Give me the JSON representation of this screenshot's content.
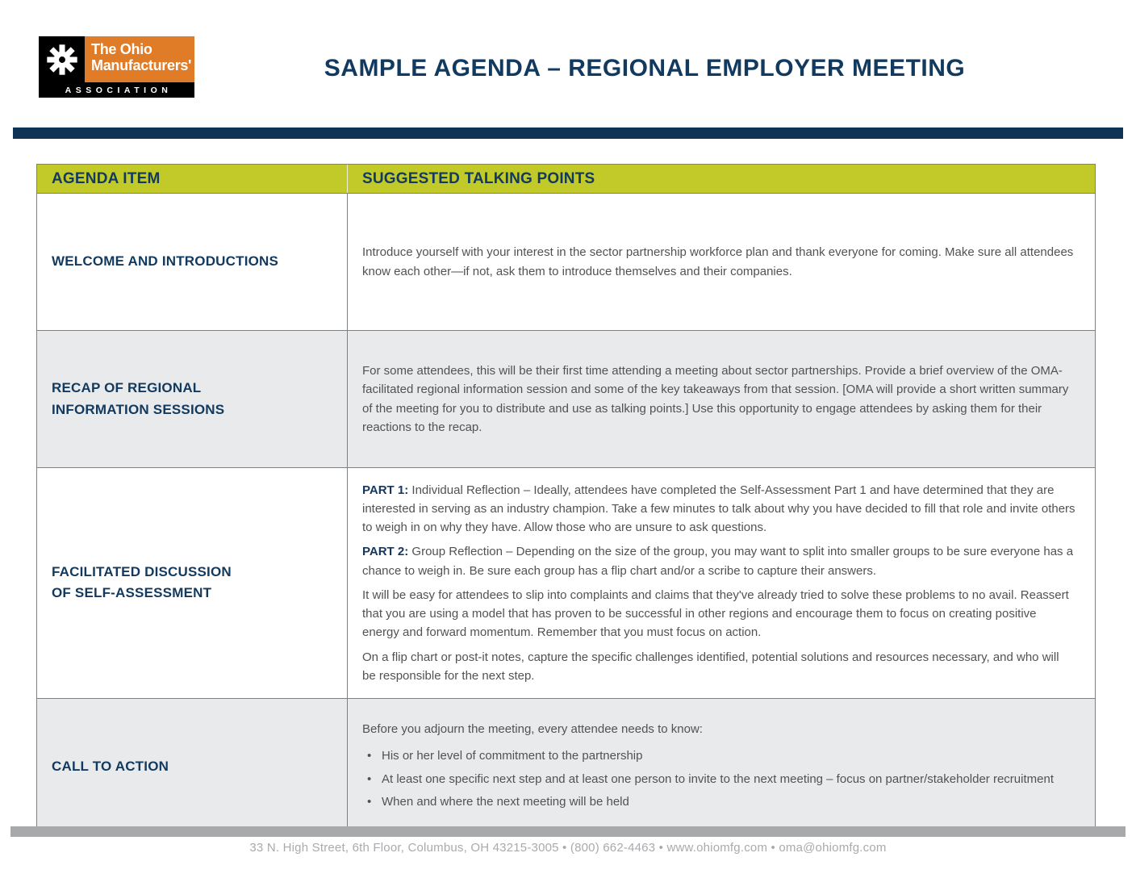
{
  "logo": {
    "line1": "The Ohio",
    "line2": "Manufacturers'",
    "line3": "ASSOCIATION"
  },
  "header": {
    "title": "SAMPLE AGENDA – REGIONAL EMPLOYER MEETING"
  },
  "table": {
    "headers": [
      "AGENDA ITEM",
      "SUGGESTED TALKING POINTS"
    ],
    "rows": [
      {
        "item": "WELCOME AND INTRODUCTIONS",
        "paragraphs": [
          {
            "text": "Introduce yourself with your interest in the sector partnership workforce plan and thank everyone for coming. Make sure all attendees know each other—if not, ask them to introduce themselves and their companies."
          }
        ]
      },
      {
        "item": "RECAP OF REGIONAL\nINFORMATION SESSIONS",
        "paragraphs": [
          {
            "text": "For some attendees, this will be their first time attending a meeting about sector partnerships. Provide a brief overview of the OMA-facilitated regional information session and some of the key takeaways from that session. [OMA will provide a short written summary of the meeting for you to distribute and use as talking points.] Use this opportunity to engage attendees by asking them for their reactions to the recap."
          }
        ]
      },
      {
        "item": "FACILITATED DISCUSSION\nOF SELF-ASSESSMENT",
        "paragraphs": [
          {
            "prefix": "PART 1:",
            "text": "Individual Reflection – Ideally, attendees have completed the Self-Assessment Part 1 and have determined that they are interested in serving as an industry champion. Take a few minutes to talk about why you have decided to fill that role and invite others to weigh in on why they have. Allow those who are unsure to ask questions."
          },
          {
            "prefix": "PART 2:",
            "text": "Group Reflection – Depending on the size of the group, you may want to split into smaller groups to be sure everyone has a chance to weigh in. Be sure each group has a flip chart and/or a scribe to capture their answers."
          },
          {
            "text": "It will be easy for attendees to slip into complaints and claims that they've already tried to solve these problems to no avail. Reassert that you are using a model that has proven to be successful in other regions and encourage them to focus on creating positive energy and forward momentum. Remember that you must focus on action."
          },
          {
            "text": "On a flip chart or post-it notes, capture the specific challenges identified, potential solutions and resources necessary, and who will be responsible for the next step."
          }
        ]
      },
      {
        "item": "CALL TO ACTION",
        "paragraphs": [
          {
            "text": "Before you adjourn the meeting, every attendee needs to know:"
          }
        ],
        "bullets": [
          "His or her level of commitment to the partnership",
          "At least one specific next step and at least one person to invite to the next meeting – focus on partner/stakeholder recruitment",
          "When and where the next meeting will be held"
        ]
      }
    ]
  },
  "footer": {
    "text": "33 N. High Street, 6th Floor, Columbus, OH 43215-3005 • (800) 662-4463 • www.ohiomfg.com • oma@ohiomfg.com"
  },
  "colors": {
    "navy": "#12395e",
    "header_green": "#c2ca2a",
    "logo_orange": "#e07c27",
    "alt_row_gray": "#e8eaec",
    "body_text_gray": "#515254",
    "footer_gray": "#a8aaad"
  }
}
